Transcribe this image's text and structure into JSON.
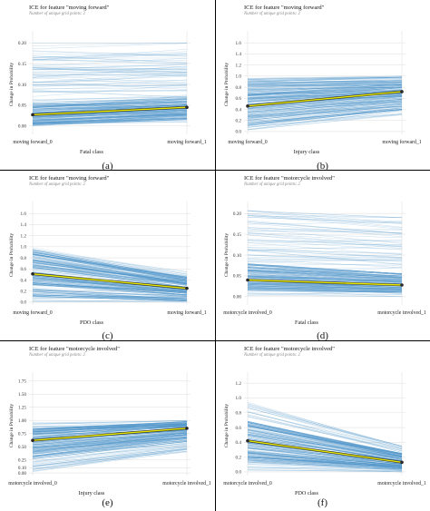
{
  "figure": {
    "captions": [
      "(a)",
      "(b)",
      "(c)",
      "(d)",
      "(e)",
      "(f)"
    ]
  },
  "colors": {
    "ice_line": "#4f95c9",
    "pdp_line": "#e8e800",
    "pdp_outline": "#2a2a2a",
    "grid": "#e3e3e3"
  },
  "chart_data": [
    {
      "type": "line",
      "title": "ICE for feature \"moving forward\"",
      "subtitle": "Number of unique grid points: 2",
      "xlabel": "Fatal class",
      "ylabel": "Change in Probability",
      "categories": [
        "moving forward_0",
        "moving forward_1"
      ],
      "yticks": [
        "0.00",
        "0.05",
        "0.10",
        "0.15",
        "0.20"
      ],
      "ylim": [
        -0.02,
        0.22
      ],
      "grid": true,
      "ice_band": {
        "start": [
          0.0,
          0.2
        ],
        "end": [
          0.01,
          0.2
        ],
        "dense_start": [
          0.0,
          0.055
        ],
        "dense_end": [
          0.015,
          0.07
        ]
      },
      "series": [
        {
          "values": [
            0.027,
            0.045
          ]
        }
      ]
    },
    {
      "type": "line",
      "title": "ICE for feature \"moving forward\"",
      "subtitle": "Number of unique grid points: 2",
      "xlabel": "Injury class",
      "ylabel": "Change in Probability",
      "categories": [
        "moving forward_0",
        "moving forward_1"
      ],
      "yticks": [
        "0.0",
        "0.2",
        "0.4",
        "0.6",
        "0.8",
        "1.0",
        "1.2",
        "1.4",
        "1.6"
      ],
      "ylim": [
        -0.05,
        1.75
      ],
      "grid": true,
      "ice_band": {
        "start": [
          0.02,
          1.0
        ],
        "end": [
          0.3,
          1.0
        ],
        "dense_start": [
          0.1,
          0.95
        ],
        "dense_end": [
          0.4,
          0.98
        ]
      },
      "series": [
        {
          "values": [
            0.46,
            0.72
          ]
        }
      ]
    },
    {
      "type": "line",
      "title": "ICE for feature \"moving forward\"",
      "subtitle": "Number of unique grid points: 2",
      "xlabel": "PDO class",
      "ylabel": "Change in Probability",
      "categories": [
        "moving forward_0",
        "moving forward_1"
      ],
      "yticks": [
        "0.0",
        "0.2",
        "0.4",
        "0.6",
        "0.8",
        "1.0",
        "1.2",
        "1.4",
        "1.6"
      ],
      "ylim": [
        -0.05,
        1.75
      ],
      "grid": true,
      "ice_band": {
        "start": [
          0.0,
          1.0
        ],
        "end": [
          0.0,
          0.55
        ],
        "dense_start": [
          0.1,
          0.95
        ],
        "dense_end": [
          0.02,
          0.45
        ]
      },
      "series": [
        {
          "values": [
            0.51,
            0.25
          ]
        }
      ]
    },
    {
      "type": "line",
      "title": "ICE for feature \"motorcycle involved\"",
      "subtitle": "Number of unique grid points: 2",
      "xlabel": "Fatal class",
      "ylabel": "Change in Probability",
      "categories": [
        "motorcycle involved_0",
        "motorcycle involved_1"
      ],
      "yticks": [
        "0.00",
        "0.05",
        "0.10",
        "0.15",
        "0.20"
      ],
      "ylim": [
        -0.02,
        0.22
      ],
      "grid": true,
      "ice_band": {
        "start": [
          0.0,
          0.21
        ],
        "end": [
          0.0,
          0.19
        ],
        "dense_start": [
          0.015,
          0.08
        ],
        "dense_end": [
          0.01,
          0.055
        ]
      },
      "series": [
        {
          "values": [
            0.04,
            0.028
          ]
        }
      ]
    },
    {
      "type": "line",
      "title": "ICE for feature \"motorcycle involved\"",
      "subtitle": "Number of unique grid points: 2",
      "xlabel": "Injury class",
      "ylabel": "Change in Probability",
      "categories": [
        "motorcycle involved_0",
        "motorcycle involved_1"
      ],
      "yticks": [
        "0.00",
        "0.10",
        "0.25",
        "0.50",
        "0.75",
        "1.00",
        "1.25",
        "1.50",
        "1.75"
      ],
      "ylim": [
        -0.05,
        1.85
      ],
      "grid": true,
      "ice_band": {
        "start": [
          0.02,
          0.97
        ],
        "end": [
          0.4,
          1.0
        ],
        "dense_start": [
          0.25,
          0.85
        ],
        "dense_end": [
          0.6,
          0.98
        ]
      },
      "series": [
        {
          "values": [
            0.62,
            0.85
          ]
        }
      ]
    },
    {
      "type": "line",
      "title": "ICE for feature \"motorcycle involved\"",
      "subtitle": "Number of unique grid points: 2",
      "xlabel": "PDO class",
      "ylabel": "Change in Probability",
      "categories": [
        "motorcycle involved_0",
        "motorcycle involved_1"
      ],
      "yticks": [
        "0.0",
        "0.2",
        "0.4",
        "0.6",
        "0.8",
        "1.0",
        "1.2"
      ],
      "ylim": [
        -0.05,
        1.3
      ],
      "grid": true,
      "ice_band": {
        "start": [
          0.02,
          0.95
        ],
        "end": [
          0.0,
          0.35
        ],
        "dense_start": [
          0.1,
          0.7
        ],
        "dense_end": [
          0.02,
          0.25
        ]
      },
      "series": [
        {
          "values": [
            0.42,
            0.13
          ]
        }
      ]
    }
  ]
}
